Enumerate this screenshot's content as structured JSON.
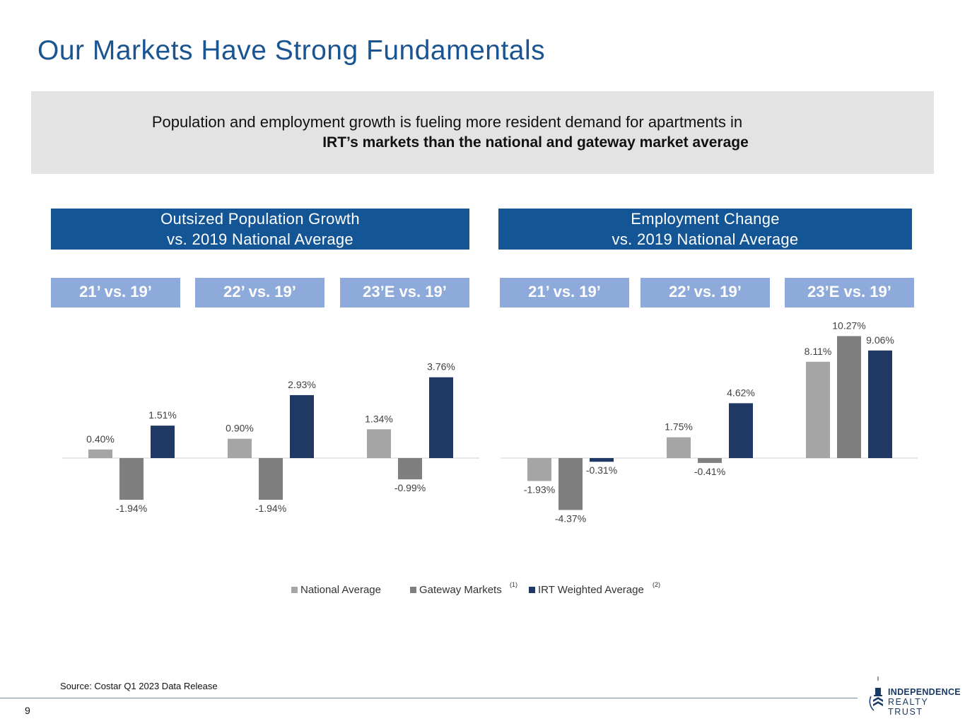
{
  "title": "Our Markets Have Strong Fundamentals",
  "banner": {
    "line1": "Population and employment growth is fueling more resident demand for apartments in",
    "line2": "IRT’s markets than the national and gateway market average"
  },
  "panels": {
    "population": {
      "line1": "Outsized Population Growth",
      "line2": "vs. 2019 National Average"
    },
    "employment": {
      "line1": "Employment Change",
      "line2": "vs. 2019 National Average"
    }
  },
  "period_labels": [
    "21’ vs. 19’",
    "22’ vs. 19’",
    "23’E vs. 19’"
  ],
  "colors": {
    "national": "#a5a5a5",
    "gateway": "#7f7f7f",
    "irt": "#203864",
    "header": "#145695",
    "period": "#8eaadb",
    "title": "#1a5592"
  },
  "chart_data": [
    {
      "type": "bar",
      "title": "Outsized Population Growth vs. 2019 National Average",
      "categories": [
        "21’ vs. 19’",
        "22’ vs. 19’",
        "23’E vs. 19’"
      ],
      "series": [
        {
          "name": "National Average",
          "values": [
            0.4,
            0.9,
            1.34
          ],
          "labels": [
            "0.40%",
            "0.90%",
            "1.34%"
          ]
        },
        {
          "name": "Gateway Markets",
          "values": [
            -1.94,
            -1.94,
            -0.99
          ],
          "labels": [
            "-1.94%",
            "-1.94%",
            "-0.99%"
          ]
        },
        {
          "name": "IRT Weighted Average",
          "values": [
            1.51,
            2.93,
            3.76
          ],
          "labels": [
            "1.51%",
            "2.93%",
            "3.76%"
          ]
        }
      ]
    },
    {
      "type": "bar",
      "title": "Employment Change vs. 2019 National Average",
      "categories": [
        "21’ vs. 19’",
        "22’ vs. 19’",
        "23’E vs. 19’"
      ],
      "series": [
        {
          "name": "National Average",
          "values": [
            -1.93,
            1.75,
            8.11
          ],
          "labels": [
            "-1.93%",
            "1.75%",
            "8.11%"
          ]
        },
        {
          "name": "Gateway Markets",
          "values": [
            -4.37,
            -0.41,
            10.27
          ],
          "labels": [
            "-4.37%",
            "-0.41%",
            "10.27%"
          ]
        },
        {
          "name": "IRT Weighted Average",
          "values": [
            -0.31,
            4.62,
            9.06
          ],
          "labels": [
            "-0.31%",
            "4.62%",
            "9.06%"
          ]
        }
      ]
    }
  ],
  "legend": {
    "items": [
      "National Average",
      "Gateway Markets",
      "IRT Weighted Average"
    ],
    "sup_gateway": "(1)",
    "sup_irt": "(2)"
  },
  "source": "Source: Costar Q1 2023 Data Release",
  "page_number": "9",
  "logo": {
    "line1": "INDEPENDENCE",
    "line2": "REALTY TRUST",
    "icon": "building-dome-icon"
  }
}
